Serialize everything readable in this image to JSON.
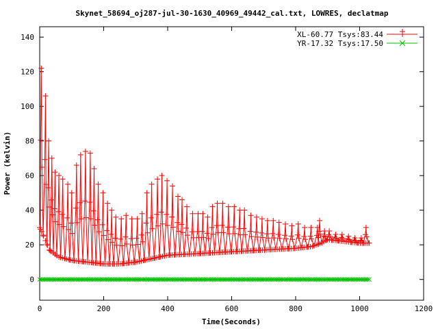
{
  "chart_data": {
    "type": "line",
    "title": "Skynet_58694_oj287-jul-30-1630_40969_49442_cal.txt, LOWRES, declatmap",
    "xlabel": "Time(Seconds)",
    "ylabel": "Power (kelvin)",
    "xlim": [
      0,
      1200
    ],
    "ylim": [
      -12,
      146
    ],
    "xticks": [
      "0",
      "200",
      "400",
      "600",
      "800",
      "1000",
      "1200"
    ],
    "yticks": [
      "0",
      "20",
      "40",
      "60",
      "80",
      "100",
      "120",
      "140"
    ],
    "xtick_values": [
      0,
      200,
      400,
      600,
      800,
      1000,
      1200
    ],
    "ytick_values": [
      0,
      20,
      40,
      60,
      80,
      100,
      120,
      140
    ],
    "grid": false,
    "legend_position": "top-right",
    "series": [
      {
        "name": "XL-60.77 Tsys:83.44",
        "color": "#ff0000",
        "marker": "plus",
        "baseline": [
          [
            0,
            30
          ],
          [
            10,
            26
          ],
          [
            30,
            17
          ],
          [
            60,
            13
          ],
          [
            100,
            11
          ],
          [
            150,
            10
          ],
          [
            200,
            9
          ],
          [
            250,
            9
          ],
          [
            300,
            10
          ],
          [
            350,
            12
          ],
          [
            400,
            14
          ],
          [
            500,
            15
          ],
          [
            600,
            16
          ],
          [
            700,
            17
          ],
          [
            800,
            18
          ],
          [
            850,
            19
          ],
          [
            880,
            21
          ],
          [
            900,
            23
          ],
          [
            950,
            22
          ],
          [
            1000,
            21
          ],
          [
            1030,
            21
          ]
        ],
        "peaks": [
          [
            5,
            122
          ],
          [
            18,
            106
          ],
          [
            28,
            80
          ],
          [
            38,
            70
          ],
          [
            48,
            62
          ],
          [
            60,
            60
          ],
          [
            72,
            58
          ],
          [
            88,
            55
          ],
          [
            100,
            50
          ],
          [
            115,
            66
          ],
          [
            128,
            72
          ],
          [
            143,
            74
          ],
          [
            158,
            73
          ],
          [
            170,
            64
          ],
          [
            183,
            55
          ],
          [
            198,
            50
          ],
          [
            212,
            44
          ],
          [
            225,
            40
          ],
          [
            238,
            36
          ],
          [
            255,
            35
          ],
          [
            270,
            37
          ],
          [
            288,
            35
          ],
          [
            305,
            35
          ],
          [
            320,
            38
          ],
          [
            335,
            50
          ],
          [
            350,
            55
          ],
          [
            368,
            58
          ],
          [
            382,
            60
          ],
          [
            398,
            57
          ],
          [
            415,
            54
          ],
          [
            432,
            48
          ],
          [
            445,
            46
          ],
          [
            460,
            42
          ],
          [
            478,
            38
          ],
          [
            495,
            38
          ],
          [
            510,
            38
          ],
          [
            525,
            36
          ],
          [
            540,
            42
          ],
          [
            555,
            44
          ],
          [
            572,
            44
          ],
          [
            590,
            42
          ],
          [
            608,
            42
          ],
          [
            625,
            40
          ],
          [
            640,
            40
          ],
          [
            660,
            37
          ],
          [
            678,
            36
          ],
          [
            695,
            35
          ],
          [
            712,
            34
          ],
          [
            730,
            34
          ],
          [
            748,
            33
          ],
          [
            768,
            32
          ],
          [
            788,
            31
          ],
          [
            808,
            32
          ],
          [
            828,
            30
          ],
          [
            848,
            30
          ],
          [
            868,
            30
          ],
          [
            875,
            34
          ],
          [
            890,
            28
          ],
          [
            905,
            28
          ],
          [
            925,
            26
          ],
          [
            945,
            26
          ],
          [
            965,
            25
          ],
          [
            985,
            24
          ],
          [
            1005,
            24
          ],
          [
            1020,
            30
          ]
        ]
      },
      {
        "name": "YR-17.32 Tsys:17.50",
        "color": "#00c000",
        "marker": "x",
        "baseline": [
          [
            0,
            0
          ],
          [
            1030,
            0
          ]
        ]
      }
    ]
  }
}
